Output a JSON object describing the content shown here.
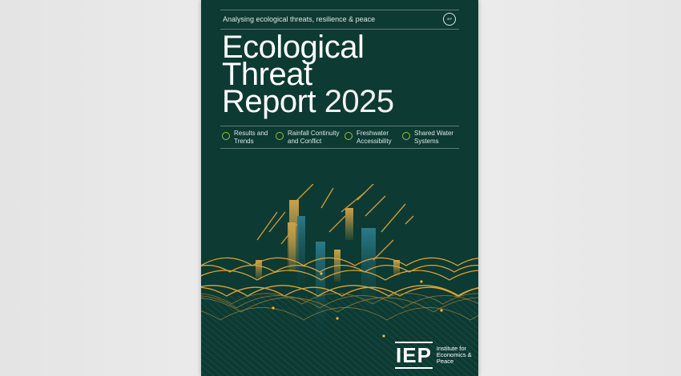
{
  "cover": {
    "tagline": "Analysing ecological threats, resilience & peace",
    "seal_text": "IEP",
    "title_lines": [
      "Ecological",
      "Threat",
      "Report"
    ],
    "year": "2025",
    "topics": [
      {
        "label": "Results and Trends"
      },
      {
        "label": "Rainfall Continuity and Conflict"
      },
      {
        "label": "Freshwater Accessibility"
      },
      {
        "label": "Shared Water Systems"
      }
    ],
    "publisher": {
      "logo": "IEP",
      "name": "Institute for Economics & Peace"
    },
    "colors": {
      "cover": "#0d3a33",
      "accent": "#9bc23c",
      "wave": "#e0a534",
      "blue": "#2a7a8c"
    }
  }
}
